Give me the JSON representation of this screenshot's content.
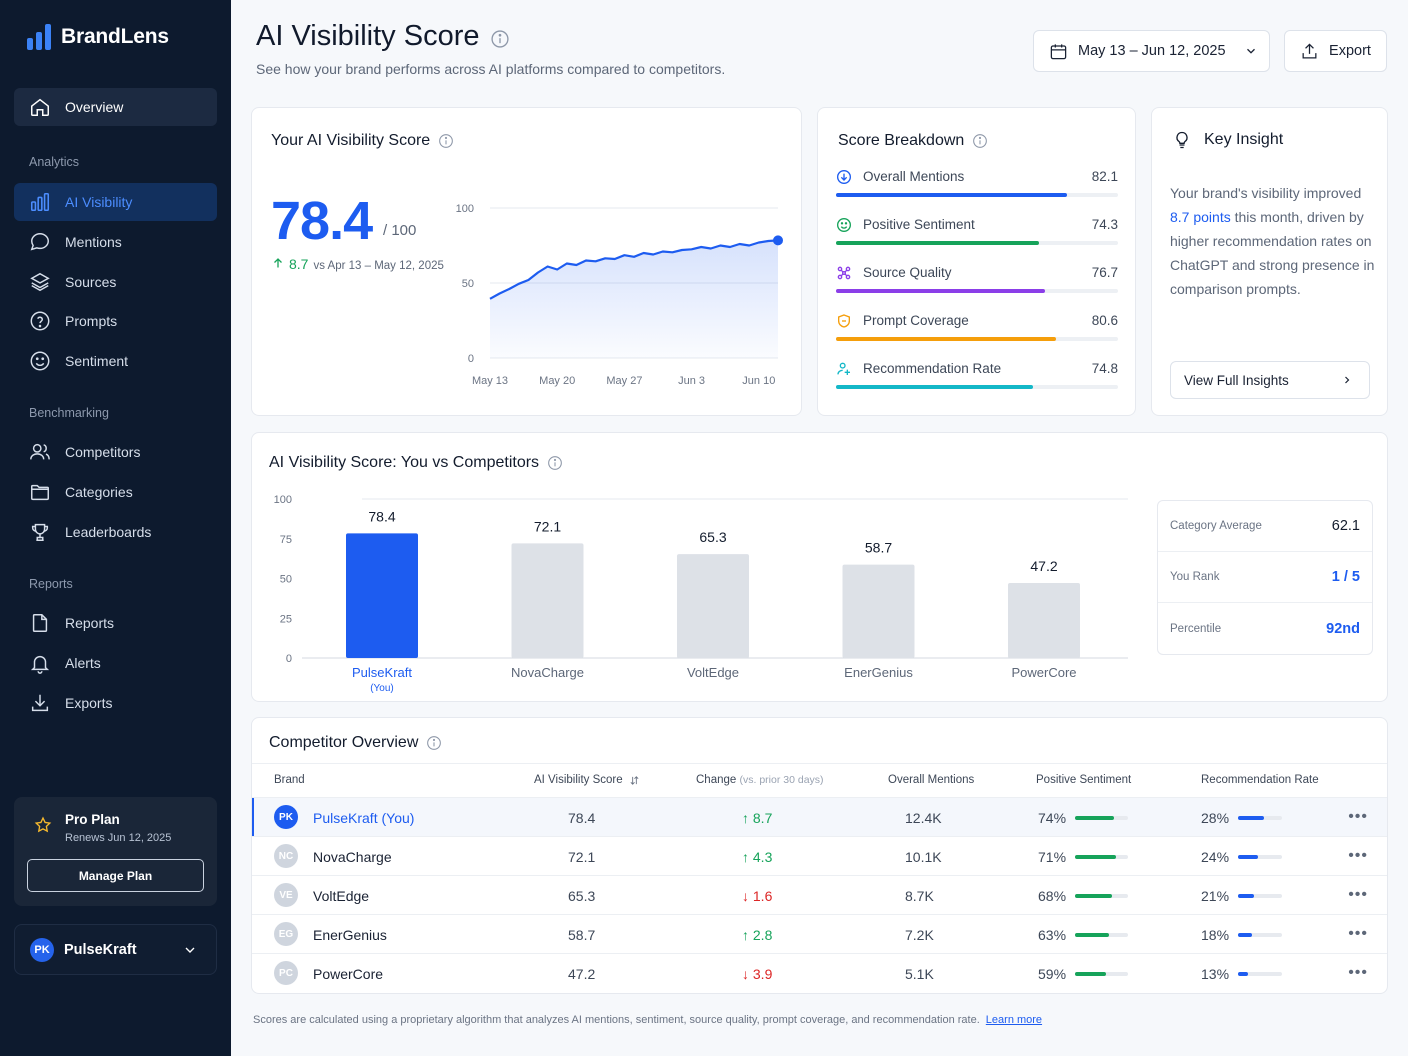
{
  "brand": {
    "name": "BrandLens"
  },
  "nav": {
    "overview": "Overview",
    "sections": {
      "analytics": "Analytics",
      "benchmarking": "Benchmarking",
      "reports": "Reports"
    },
    "analytics_items": [
      {
        "label": "AI Visibility",
        "icon": "bar-chart-icon",
        "active": true
      },
      {
        "label": "Mentions",
        "icon": "chat-bubble-icon"
      },
      {
        "label": "Sources",
        "icon": "layers-icon"
      },
      {
        "label": "Prompts",
        "icon": "question-circle-icon"
      },
      {
        "label": "Sentiment",
        "icon": "smile-icon"
      }
    ],
    "benchmarking_items": [
      {
        "label": "Competitors",
        "icon": "users-icon"
      },
      {
        "label": "Categories",
        "icon": "folder-icon"
      },
      {
        "label": "Leaderboards",
        "icon": "trophy-icon"
      }
    ],
    "reports_items": [
      {
        "label": "Reports",
        "icon": "document-icon"
      },
      {
        "label": "Alerts",
        "icon": "bell-icon"
      },
      {
        "label": "Exports",
        "icon": "download-icon"
      }
    ]
  },
  "plan": {
    "title": "Pro Plan",
    "renews": "Renews Jun 12, 2025",
    "button": "Manage Plan"
  },
  "account": {
    "initials": "PK",
    "name": "PulseKraft"
  },
  "header": {
    "title": "AI Visibility Score",
    "subtitle": "See how your brand performs across AI platforms compared to competitors.",
    "date_range": "May 13 – Jun 12, 2025",
    "export": "Export"
  },
  "score_card": {
    "title": "Your AI Visibility Score",
    "score": "78.4",
    "max": "/ 100",
    "change": "8.7",
    "change_period": "vs Apr 13 – May 12, 2025"
  },
  "chart_data": [
    {
      "type": "line",
      "y_ticks": [
        "100",
        "50",
        "0"
      ],
      "ylim": [
        0,
        100
      ],
      "x_ticks": [
        "May 13",
        "May 20",
        "May 27",
        "Jun 3",
        "Jun 10"
      ],
      "x": [
        "May 13",
        "May 14",
        "May 15",
        "May 16",
        "May 17",
        "May 18",
        "May 19",
        "May 20",
        "May 21",
        "May 22",
        "May 23",
        "May 24",
        "May 25",
        "May 26",
        "May 27",
        "May 28",
        "May 29",
        "May 30",
        "May 31",
        "Jun 1",
        "Jun 2",
        "Jun 3",
        "Jun 4",
        "Jun 5",
        "Jun 6",
        "Jun 7",
        "Jun 8",
        "Jun 9",
        "Jun 10",
        "Jun 11",
        "Jun 12"
      ],
      "values": [
        39.5,
        43,
        46,
        49.5,
        52,
        57,
        61,
        59,
        63,
        62,
        65,
        64.5,
        66.5,
        66,
        68.5,
        67.5,
        70,
        69,
        71,
        70.5,
        72,
        72.5,
        74,
        73,
        75,
        74,
        76,
        75,
        77,
        78,
        78.4
      ],
      "color": "#1d5cf0"
    },
    {
      "type": "bar",
      "title": "AI Visibility Score: You vs Competitors",
      "categories": [
        "PulseKraft",
        "NovaCharge",
        "VoltEdge",
        "EnerGenius",
        "PowerCore"
      ],
      "category_note": "(You)",
      "values": [
        78.4,
        72.1,
        65.3,
        58.7,
        47.2
      ],
      "value_labels": [
        "78.4",
        "72.1",
        "65.3",
        "58.7",
        "47.2"
      ],
      "y_ticks": [
        "100",
        "75",
        "50",
        "25",
        "0"
      ],
      "ylim": [
        0,
        100
      ],
      "highlight_color": "#1d5cf0",
      "bar_color": "#dde1e7"
    }
  ],
  "breakdown": {
    "title": "Score Breakdown",
    "items": [
      {
        "label": "Overall Mentions",
        "value": "82.1",
        "pct": 0.82,
        "color": "#1d5cf0",
        "icon": "download-circle-icon"
      },
      {
        "label": "Positive Sentiment",
        "value": "74.3",
        "pct": 0.72,
        "color": "#16a35a",
        "icon": "smile-icon"
      },
      {
        "label": "Source Quality",
        "value": "76.7",
        "pct": 0.74,
        "color": "#8b3ee8",
        "icon": "network-icon"
      },
      {
        "label": "Prompt Coverage",
        "value": "80.6",
        "pct": 0.78,
        "color": "#f59e0b",
        "icon": "shield-icon"
      },
      {
        "label": "Recommendation Rate",
        "value": "74.8",
        "pct": 0.7,
        "color": "#14b8c8",
        "icon": "user-plus-icon"
      }
    ]
  },
  "insight": {
    "title": "Key Insight",
    "text_before": "Your brand's visibility improved ",
    "highlight": "8.7 points",
    "text_after": " this month, driven by higher recommendation rates on ChatGPT and strong presence in comparison prompts.",
    "button": "View Full Insights"
  },
  "stats": [
    {
      "label": "Category Average",
      "value": "62.1"
    },
    {
      "label": "You Rank",
      "value": "1 / 5"
    },
    {
      "label": "Percentile",
      "value": "92nd"
    }
  ],
  "table": {
    "title": "Competitor Overview",
    "headers": {
      "brand": "Brand",
      "score": "AI Visibility Score",
      "change": "Change",
      "change_note": "(vs. prior 30 days)",
      "mentions": "Overall Mentions",
      "sentiment": "Positive Sentiment",
      "recommendation": "Recommendation Rate"
    },
    "rows": [
      {
        "initials": "PK",
        "brand": "PulseKraft (You)",
        "score": "78.4",
        "dir": "up",
        "change": "8.7",
        "mentions": "12.4K",
        "sentiment": "74%",
        "sent_pct": 0.74,
        "rec": "28%",
        "rec_pct": 0.6,
        "you": true
      },
      {
        "initials": "NC",
        "brand": "NovaCharge",
        "score": "72.1",
        "dir": "up",
        "change": "4.3",
        "mentions": "10.1K",
        "sentiment": "71%",
        "sent_pct": 0.78,
        "rec": "24%",
        "rec_pct": 0.45
      },
      {
        "initials": "VE",
        "brand": "VoltEdge",
        "score": "65.3",
        "dir": "down",
        "change": "1.6",
        "mentions": "8.7K",
        "sentiment": "68%",
        "sent_pct": 0.7,
        "rec": "21%",
        "rec_pct": 0.37
      },
      {
        "initials": "EG",
        "brand": "EnerGenius",
        "score": "58.7",
        "dir": "up",
        "change": "2.8",
        "mentions": "7.2K",
        "sentiment": "63%",
        "sent_pct": 0.64,
        "rec": "18%",
        "rec_pct": 0.32
      },
      {
        "initials": "PC",
        "brand": "PowerCore",
        "score": "47.2",
        "dir": "down",
        "change": "3.9",
        "mentions": "5.1K",
        "sentiment": "59%",
        "sent_pct": 0.58,
        "rec": "13%",
        "rec_pct": 0.22
      }
    ]
  },
  "footnote": {
    "text": "Scores are calculated using a proprietary algorithm that analyzes AI mentions, sentiment, source quality, prompt coverage, and recommendation rate.",
    "link": "Learn more"
  }
}
